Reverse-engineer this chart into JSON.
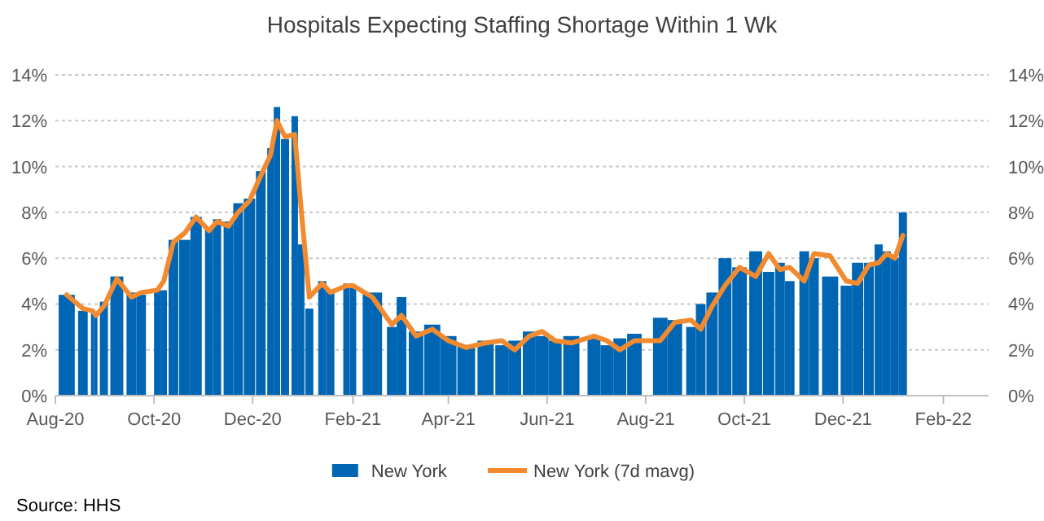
{
  "chart_data": {
    "type": "bar",
    "title": "Hospitals Expecting Staffing Shortage Within 1 Wk",
    "series": [
      {
        "name": "New York",
        "color": "#0066b3",
        "x": [
          "2020-08-08",
          "2020-08-18",
          "2020-08-24",
          "2020-08-26",
          "2020-08-31",
          "2020-09-08",
          "2020-09-17",
          "2020-09-23",
          "2020-10-03",
          "2020-10-07",
          "2020-10-13",
          "2020-10-20",
          "2020-10-27",
          "2020-11-04",
          "2020-11-09",
          "2020-11-16",
          "2020-11-22",
          "2020-11-29",
          "2020-12-06",
          "2020-12-12",
          "2020-12-16",
          "2020-12-21",
          "2020-12-27",
          "2020-12-31",
          "2021-01-05",
          "2021-01-13",
          "2021-01-18",
          "2021-01-28",
          "2021-02-01",
          "2021-02-13",
          "2021-02-25",
          "2021-03-03",
          "2021-03-12",
          "2021-03-22",
          "2021-04-01",
          "2021-04-12",
          "2021-04-24",
          "2021-05-04",
          "2021-05-12",
          "2021-05-21",
          "2021-05-29",
          "2021-06-06",
          "2021-06-16",
          "2021-06-30",
          "2021-07-08",
          "2021-07-16",
          "2021-07-25",
          "2021-08-10",
          "2021-08-19",
          "2021-08-29",
          "2021-09-04",
          "2021-09-11",
          "2021-09-19",
          "2021-09-28",
          "2021-10-08",
          "2021-10-16",
          "2021-10-23",
          "2021-10-29",
          "2021-11-07",
          "2021-11-13",
          "2021-11-23",
          "2021-12-03",
          "2021-12-10",
          "2021-12-17",
          "2021-12-23",
          "2021-12-28",
          "2022-01-02",
          "2022-01-07"
        ],
        "values": [
          4.4,
          3.7,
          3.6,
          3.5,
          4.1,
          5.2,
          4.5,
          4.4,
          4.6,
          4.6,
          6.8,
          6.8,
          7.8,
          7.3,
          7.7,
          7.6,
          8.4,
          8.6,
          9.8,
          10.8,
          12.6,
          11.2,
          12.2,
          6.6,
          3.8,
          5.0,
          4.6,
          4.9,
          4.8,
          4.5,
          3.0,
          4.3,
          2.8,
          3.1,
          2.6,
          2.2,
          2.4,
          2.2,
          2.4,
          2.8,
          2.6,
          2.4,
          2.6,
          2.6,
          2.2,
          2.5,
          2.7,
          3.4,
          3.3,
          3.0,
          4.0,
          4.5,
          6.0,
          5.6,
          6.3,
          5.4,
          5.8,
          5.0,
          6.3,
          6.0,
          5.2,
          4.8,
          5.8,
          5.8,
          6.6,
          6.3,
          6.0,
          8.0
        ]
      },
      {
        "name": "New York (7d mavg)",
        "type": "line",
        "color": "#f28a30",
        "x": [
          "2020-08-08",
          "2020-08-18",
          "2020-08-24",
          "2020-08-26",
          "2020-08-31",
          "2020-09-08",
          "2020-09-17",
          "2020-09-23",
          "2020-10-03",
          "2020-10-07",
          "2020-10-13",
          "2020-10-20",
          "2020-10-27",
          "2020-11-04",
          "2020-11-09",
          "2020-11-16",
          "2020-11-22",
          "2020-11-29",
          "2020-12-06",
          "2020-12-12",
          "2020-12-16",
          "2020-12-21",
          "2020-12-27",
          "2020-12-31",
          "2021-01-05",
          "2021-01-13",
          "2021-01-18",
          "2021-01-28",
          "2021-02-01",
          "2021-02-13",
          "2021-02-25",
          "2021-03-03",
          "2021-03-12",
          "2021-03-22",
          "2021-04-01",
          "2021-04-12",
          "2021-04-24",
          "2021-05-04",
          "2021-05-12",
          "2021-05-21",
          "2021-05-29",
          "2021-06-06",
          "2021-06-16",
          "2021-06-30",
          "2021-07-08",
          "2021-07-16",
          "2021-07-25",
          "2021-08-10",
          "2021-08-19",
          "2021-08-29",
          "2021-09-04",
          "2021-09-11",
          "2021-09-19",
          "2021-09-28",
          "2021-10-08",
          "2021-10-16",
          "2021-10-23",
          "2021-10-29",
          "2021-11-07",
          "2021-11-13",
          "2021-11-23",
          "2021-12-03",
          "2021-12-10",
          "2021-12-17",
          "2021-12-23",
          "2021-12-28",
          "2022-01-02",
          "2022-01-07"
        ],
        "values": [
          4.4,
          3.8,
          3.7,
          3.5,
          3.9,
          5.1,
          4.3,
          4.5,
          4.6,
          5.0,
          6.7,
          7.1,
          7.8,
          7.2,
          7.6,
          7.4,
          8.0,
          8.5,
          9.6,
          10.5,
          12.0,
          11.3,
          11.4,
          8.1,
          4.3,
          4.9,
          4.5,
          4.8,
          4.8,
          4.3,
          3.1,
          3.5,
          2.6,
          2.9,
          2.4,
          2.1,
          2.3,
          2.4,
          2.0,
          2.6,
          2.8,
          2.4,
          2.3,
          2.6,
          2.4,
          2.0,
          2.4,
          2.4,
          3.2,
          3.3,
          2.9,
          3.9,
          4.8,
          5.6,
          5.2,
          6.2,
          5.5,
          5.6,
          5.0,
          6.2,
          6.1,
          5.0,
          4.9,
          5.7,
          5.8,
          6.2,
          6.0,
          7.0
        ]
      }
    ],
    "xlim": [
      "2020-08-01",
      "2022-03-01"
    ],
    "xticks": [
      {
        "value": "2020-08-01",
        "label": "Aug-20"
      },
      {
        "value": "2020-10-01",
        "label": "Oct-20"
      },
      {
        "value": "2020-12-01",
        "label": "Dec-20"
      },
      {
        "value": "2021-02-01",
        "label": "Feb-21"
      },
      {
        "value": "2021-04-01",
        "label": "Apr-21"
      },
      {
        "value": "2021-06-01",
        "label": "Jun-21"
      },
      {
        "value": "2021-08-01",
        "label": "Aug-21"
      },
      {
        "value": "2021-10-01",
        "label": "Oct-21"
      },
      {
        "value": "2021-12-01",
        "label": "Dec-21"
      },
      {
        "value": "2022-02-01",
        "label": "Feb-22"
      }
    ],
    "ylim": [
      0,
      14
    ],
    "yticks": [
      {
        "value": 0,
        "label": "0%"
      },
      {
        "value": 2,
        "label": "2%"
      },
      {
        "value": 4,
        "label": "4%"
      },
      {
        "value": 6,
        "label": "6%"
      },
      {
        "value": 8,
        "label": "8%"
      },
      {
        "value": 10,
        "label": "10%"
      },
      {
        "value": 12,
        "label": "12%"
      },
      {
        "value": 14,
        "label": "14%"
      }
    ],
    "y2lim": [
      0,
      14
    ],
    "y2ticks": [
      {
        "value": 0,
        "label": "0%"
      },
      {
        "value": 2,
        "label": "2%"
      },
      {
        "value": 4,
        "label": "4%"
      },
      {
        "value": 6,
        "label": "6%"
      },
      {
        "value": 8,
        "label": "8%"
      },
      {
        "value": 10,
        "label": "10%"
      },
      {
        "value": 12,
        "label": "12%"
      },
      {
        "value": 14,
        "label": "14%"
      }
    ],
    "grid": "y",
    "legend": "bottom",
    "annotations": [
      "Source: HHS"
    ]
  }
}
